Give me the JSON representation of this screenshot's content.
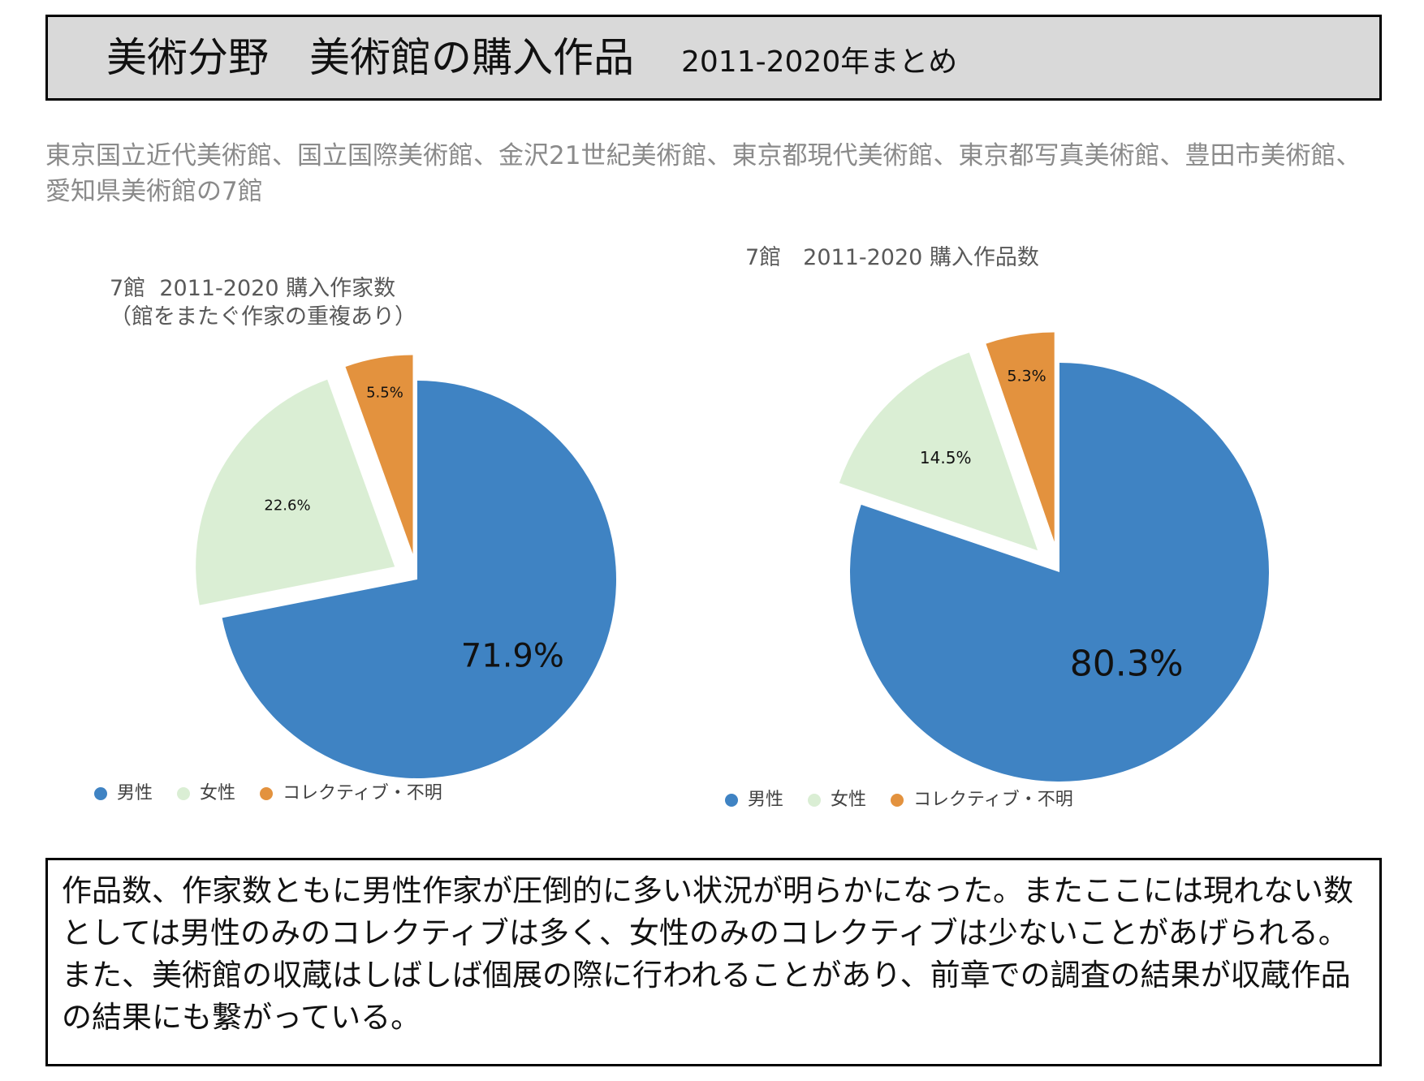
{
  "header": {
    "title": "美術分野　美術館の購入作品",
    "subtitle": "2011-2020年まとめ"
  },
  "museums_text": "東京国立近代美術館、国立国際美術館、金沢21世紀美術館、東京都現代美術館、東京都写真美術館、豊田市美術館、愛知県美術館の7館",
  "colors": {
    "male": "#3f83c3",
    "female": "#daeed4",
    "other": "#e3923e"
  },
  "chart_data": [
    {
      "type": "pie",
      "title": "7館  2011-2020 購入作家数\n（館をまたぐ作家の重複あり）",
      "categories": [
        "男性",
        "女性",
        "コレクティブ・不明"
      ],
      "values": [
        71.9,
        22.6,
        5.5
      ],
      "labels": [
        "71.9%",
        "22.6%",
        "5.5%"
      ],
      "legend": "bottom"
    },
    {
      "type": "pie",
      "title": "7館　2011-2020 購入作品数",
      "categories": [
        "男性",
        "女性",
        "コレクティブ・不明"
      ],
      "values": [
        80.3,
        14.5,
        5.3
      ],
      "labels": [
        "80.3%",
        "14.5%",
        "5.3%"
      ],
      "legend": "bottom"
    }
  ],
  "note": "作品数、作家数ともに男性作家が圧倒的に多い状況が明らかになった。またここには現れない数としては男性のみのコレクティブは多く、女性のみのコレクティブは少ないことがあげられる。また、美術館の収蔵はしばしば個展の際に行われることがあり、前章での調査の結果が収蔵作品の結果にも繋がっている。"
}
